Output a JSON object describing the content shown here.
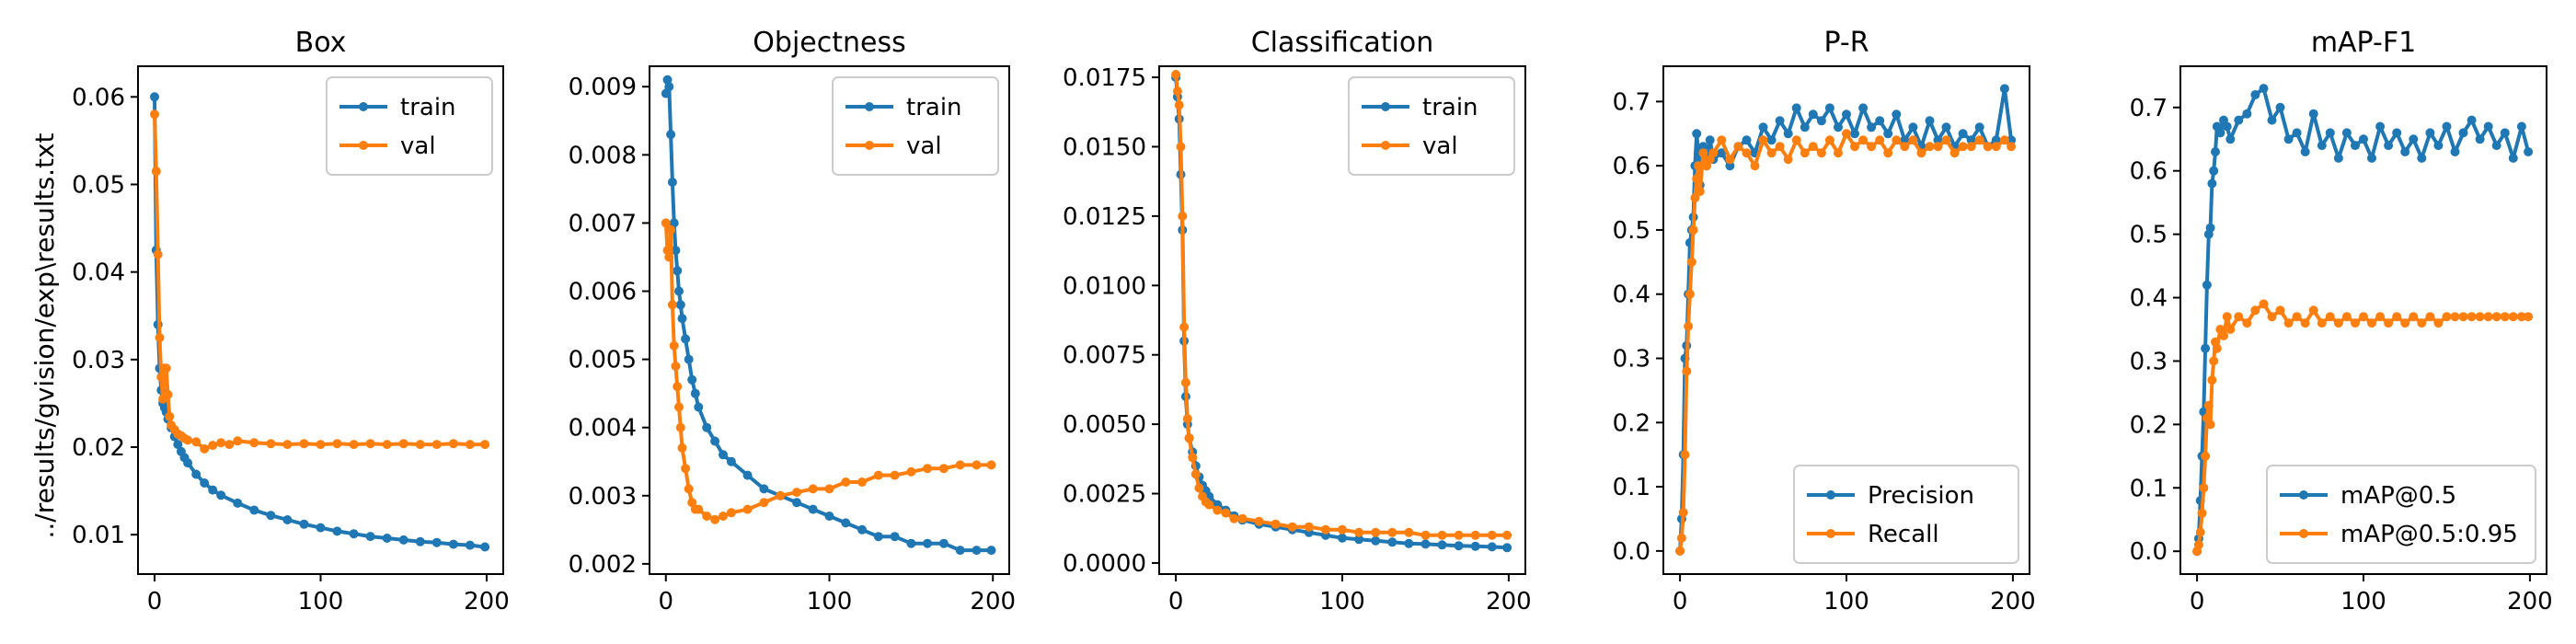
{
  "figure": {
    "ylabel": "../results/gvision/exp\\results.txt"
  },
  "colors": {
    "blue": "#1f77b4",
    "orange": "#ff7f0e"
  },
  "chart_data": [
    {
      "type": "line",
      "title": "Box",
      "xlim": [
        -10,
        210
      ],
      "ylim": [
        0.0055,
        0.0635
      ],
      "xticks": [
        0,
        100,
        200
      ],
      "yticks": [
        0.01,
        0.02,
        0.03,
        0.04,
        0.05,
        0.06
      ],
      "yticklabels": [
        "0.01",
        "0.02",
        "0.03",
        "0.04",
        "0.05",
        "0.06"
      ],
      "legend": "top-right",
      "series": [
        {
          "name": "train",
          "color": "blue",
          "x": [
            0,
            1,
            2,
            3,
            4,
            5,
            6,
            7,
            8,
            10,
            12,
            14,
            16,
            18,
            20,
            25,
            30,
            35,
            40,
            50,
            60,
            70,
            80,
            90,
            100,
            110,
            120,
            130,
            140,
            150,
            160,
            170,
            180,
            190,
            199
          ],
          "y": [
            0.06,
            0.0425,
            0.034,
            0.029,
            0.0265,
            0.025,
            0.0245,
            0.024,
            0.0232,
            0.0222,
            0.0212,
            0.0203,
            0.0195,
            0.0188,
            0.0182,
            0.0169,
            0.0159,
            0.0151,
            0.0145,
            0.0136,
            0.0128,
            0.0122,
            0.0117,
            0.0112,
            0.0108,
            0.0104,
            0.0101,
            0.0098,
            0.0096,
            0.0094,
            0.0092,
            0.0091,
            0.0089,
            0.0088,
            0.0086
          ]
        },
        {
          "name": "val",
          "color": "orange",
          "x": [
            0,
            1,
            2,
            3,
            4,
            5,
            6,
            7,
            8,
            9,
            10,
            12,
            14,
            16,
            18,
            20,
            25,
            30,
            35,
            40,
            45,
            50,
            60,
            70,
            80,
            90,
            100,
            110,
            120,
            130,
            140,
            150,
            160,
            170,
            180,
            190,
            199
          ],
          "y": [
            0.058,
            0.0515,
            0.042,
            0.0325,
            0.028,
            0.0255,
            0.029,
            0.029,
            0.026,
            0.0235,
            0.0225,
            0.022,
            0.0215,
            0.0213,
            0.021,
            0.0208,
            0.0206,
            0.0198,
            0.0202,
            0.0205,
            0.0203,
            0.0207,
            0.0205,
            0.0204,
            0.0203,
            0.0204,
            0.0203,
            0.0204,
            0.0203,
            0.0204,
            0.0203,
            0.0204,
            0.0203,
            0.0203,
            0.0204,
            0.0203,
            0.0203
          ]
        }
      ]
    },
    {
      "type": "line",
      "title": "Objectness",
      "xlim": [
        -10,
        210
      ],
      "ylim": [
        0.00185,
        0.0093
      ],
      "xticks": [
        0,
        100,
        200
      ],
      "yticks": [
        0.002,
        0.003,
        0.004,
        0.005,
        0.006,
        0.007,
        0.008,
        0.009
      ],
      "yticklabels": [
        "0.002",
        "0.003",
        "0.004",
        "0.005",
        "0.006",
        "0.007",
        "0.008",
        "0.009"
      ],
      "legend": "top-right",
      "series": [
        {
          "name": "train",
          "color": "blue",
          "x": [
            0,
            1,
            2,
            3,
            4,
            5,
            6,
            7,
            8,
            9,
            10,
            12,
            14,
            16,
            18,
            20,
            25,
            30,
            35,
            40,
            50,
            60,
            70,
            80,
            90,
            100,
            110,
            120,
            130,
            140,
            150,
            160,
            170,
            180,
            190,
            199
          ],
          "y": [
            0.0089,
            0.0091,
            0.009,
            0.0083,
            0.0076,
            0.007,
            0.0066,
            0.0063,
            0.006,
            0.0058,
            0.0056,
            0.0053,
            0.005,
            0.0047,
            0.0045,
            0.0043,
            0.004,
            0.0038,
            0.0036,
            0.0035,
            0.0033,
            0.0031,
            0.003,
            0.0029,
            0.0028,
            0.0027,
            0.0026,
            0.0025,
            0.0024,
            0.0024,
            0.0023,
            0.0023,
            0.0023,
            0.0022,
            0.0022,
            0.0022
          ]
        },
        {
          "name": "val",
          "color": "orange",
          "x": [
            0,
            1,
            2,
            3,
            4,
            5,
            6,
            7,
            8,
            9,
            10,
            12,
            14,
            16,
            18,
            20,
            25,
            30,
            35,
            40,
            50,
            60,
            70,
            80,
            90,
            100,
            110,
            120,
            130,
            140,
            150,
            160,
            170,
            180,
            190,
            199
          ],
          "y": [
            0.007,
            0.0066,
            0.0065,
            0.0069,
            0.0058,
            0.0052,
            0.0049,
            0.0046,
            0.0043,
            0.004,
            0.0037,
            0.0034,
            0.0031,
            0.0029,
            0.0028,
            0.0028,
            0.0027,
            0.00265,
            0.0027,
            0.00275,
            0.0028,
            0.0029,
            0.003,
            0.00305,
            0.0031,
            0.0031,
            0.0032,
            0.0032,
            0.0033,
            0.0033,
            0.00335,
            0.0034,
            0.0034,
            0.00345,
            0.00345,
            0.00345
          ]
        }
      ]
    },
    {
      "type": "line",
      "title": "Classification",
      "xlim": [
        -10,
        210
      ],
      "ylim": [
        -0.0004,
        0.0179
      ],
      "xticks": [
        0,
        100,
        200
      ],
      "yticks": [
        0,
        0.0025,
        0.005,
        0.0075,
        0.01,
        0.0125,
        0.015,
        0.0175
      ],
      "yticklabels": [
        "0.0000",
        "0.0025",
        "0.0050",
        "0.0075",
        "0.0100",
        "0.0125",
        "0.0150",
        "0.0175"
      ],
      "legend": "top-right",
      "series": [
        {
          "name": "train",
          "color": "blue",
          "x": [
            0,
            1,
            2,
            3,
            4,
            5,
            6,
            7,
            8,
            10,
            12,
            14,
            16,
            18,
            20,
            25,
            30,
            35,
            40,
            50,
            60,
            70,
            80,
            90,
            100,
            110,
            120,
            130,
            140,
            150,
            160,
            170,
            180,
            190,
            199
          ],
          "y": [
            0.0175,
            0.0168,
            0.016,
            0.014,
            0.012,
            0.008,
            0.006,
            0.005,
            0.0045,
            0.004,
            0.0035,
            0.0031,
            0.0028,
            0.0026,
            0.0024,
            0.0021,
            0.0019,
            0.0017,
            0.00155,
            0.0014,
            0.0013,
            0.0012,
            0.0011,
            0.001,
            0.0009,
            0.00085,
            0.0008,
            0.00075,
            0.0007,
            0.00068,
            0.00065,
            0.00062,
            0.0006,
            0.00058,
            0.00055
          ]
        },
        {
          "name": "val",
          "color": "orange",
          "x": [
            0,
            1,
            2,
            3,
            4,
            5,
            6,
            7,
            8,
            10,
            12,
            14,
            16,
            18,
            20,
            25,
            30,
            35,
            40,
            50,
            60,
            70,
            80,
            90,
            100,
            110,
            120,
            130,
            140,
            150,
            160,
            170,
            180,
            190,
            199
          ],
          "y": [
            0.0176,
            0.017,
            0.0165,
            0.015,
            0.0125,
            0.0085,
            0.0065,
            0.0052,
            0.0045,
            0.0038,
            0.0032,
            0.0027,
            0.0024,
            0.0022,
            0.0021,
            0.0019,
            0.0018,
            0.0016,
            0.0016,
            0.0015,
            0.0014,
            0.0013,
            0.0013,
            0.0012,
            0.0012,
            0.0011,
            0.0011,
            0.0011,
            0.0011,
            0.001,
            0.001,
            0.001,
            0.001,
            0.001,
            0.001
          ]
        }
      ]
    },
    {
      "type": "line",
      "title": "P-R",
      "xlim": [
        -10,
        210
      ],
      "ylim": [
        -0.036,
        0.755
      ],
      "xticks": [
        0,
        100,
        200
      ],
      "yticks": [
        0,
        0.1,
        0.2,
        0.3,
        0.4,
        0.5,
        0.6,
        0.7
      ],
      "yticklabels": [
        "0.0",
        "0.1",
        "0.2",
        "0.3",
        "0.4",
        "0.5",
        "0.6",
        "0.7"
      ],
      "legend": "bottom-right",
      "series": [
        {
          "name": "Precision",
          "color": "blue",
          "x": [
            0,
            1,
            2,
            3,
            4,
            5,
            6,
            7,
            8,
            9,
            10,
            11,
            12,
            14,
            16,
            18,
            20,
            25,
            30,
            35,
            40,
            45,
            50,
            55,
            60,
            65,
            70,
            75,
            80,
            85,
            90,
            95,
            100,
            105,
            110,
            115,
            120,
            125,
            130,
            135,
            140,
            145,
            150,
            155,
            160,
            165,
            170,
            175,
            180,
            185,
            190,
            195,
            199
          ],
          "y": [
            0.0,
            0.05,
            0.15,
            0.3,
            0.32,
            0.4,
            0.48,
            0.5,
            0.52,
            0.6,
            0.65,
            0.62,
            0.57,
            0.63,
            0.6,
            0.64,
            0.61,
            0.62,
            0.6,
            0.63,
            0.64,
            0.62,
            0.66,
            0.64,
            0.67,
            0.65,
            0.69,
            0.66,
            0.68,
            0.67,
            0.69,
            0.66,
            0.68,
            0.65,
            0.69,
            0.66,
            0.67,
            0.65,
            0.68,
            0.64,
            0.66,
            0.63,
            0.67,
            0.64,
            0.66,
            0.63,
            0.65,
            0.64,
            0.66,
            0.63,
            0.64,
            0.72,
            0.64
          ]
        },
        {
          "name": "Recall",
          "color": "orange",
          "x": [
            0,
            1,
            2,
            3,
            4,
            5,
            6,
            7,
            8,
            9,
            10,
            11,
            12,
            14,
            16,
            18,
            20,
            25,
            30,
            35,
            40,
            45,
            50,
            55,
            60,
            65,
            70,
            75,
            80,
            85,
            90,
            95,
            100,
            105,
            110,
            115,
            120,
            125,
            130,
            135,
            140,
            145,
            150,
            155,
            160,
            165,
            170,
            175,
            180,
            185,
            190,
            195,
            199
          ],
          "y": [
            0.0,
            0.02,
            0.06,
            0.15,
            0.28,
            0.35,
            0.4,
            0.45,
            0.5,
            0.55,
            0.58,
            0.6,
            0.56,
            0.62,
            0.6,
            0.61,
            0.62,
            0.64,
            0.61,
            0.63,
            0.62,
            0.6,
            0.64,
            0.62,
            0.63,
            0.61,
            0.64,
            0.62,
            0.63,
            0.62,
            0.64,
            0.62,
            0.65,
            0.63,
            0.64,
            0.63,
            0.64,
            0.62,
            0.64,
            0.63,
            0.64,
            0.62,
            0.63,
            0.63,
            0.64,
            0.62,
            0.63,
            0.63,
            0.64,
            0.63,
            0.63,
            0.64,
            0.63
          ]
        }
      ]
    },
    {
      "type": "line",
      "title": "mAP-F1",
      "xlim": [
        -10,
        210
      ],
      "ylim": [
        -0.036,
        0.765
      ],
      "xticks": [
        0,
        100,
        200
      ],
      "yticks": [
        0,
        0.1,
        0.2,
        0.3,
        0.4,
        0.5,
        0.6,
        0.7
      ],
      "yticklabels": [
        "0.0",
        "0.1",
        "0.2",
        "0.3",
        "0.4",
        "0.5",
        "0.6",
        "0.7"
      ],
      "legend": "bottom-right",
      "series": [
        {
          "name": "mAP@0.5",
          "color": "blue",
          "x": [
            0,
            1,
            2,
            3,
            4,
            5,
            6,
            7,
            8,
            9,
            10,
            11,
            12,
            14,
            16,
            18,
            20,
            25,
            30,
            35,
            40,
            45,
            50,
            55,
            60,
            65,
            70,
            75,
            80,
            85,
            90,
            95,
            100,
            105,
            110,
            115,
            120,
            125,
            130,
            135,
            140,
            145,
            150,
            155,
            160,
            165,
            170,
            175,
            180,
            185,
            190,
            195,
            199
          ],
          "y": [
            0.0,
            0.02,
            0.08,
            0.15,
            0.22,
            0.32,
            0.42,
            0.5,
            0.51,
            0.58,
            0.6,
            0.63,
            0.67,
            0.66,
            0.68,
            0.67,
            0.65,
            0.68,
            0.69,
            0.72,
            0.73,
            0.68,
            0.7,
            0.65,
            0.66,
            0.63,
            0.69,
            0.64,
            0.66,
            0.62,
            0.66,
            0.64,
            0.65,
            0.62,
            0.67,
            0.64,
            0.66,
            0.63,
            0.65,
            0.62,
            0.66,
            0.64,
            0.67,
            0.63,
            0.66,
            0.68,
            0.65,
            0.67,
            0.64,
            0.66,
            0.62,
            0.67,
            0.63
          ]
        },
        {
          "name": "mAP@0.5:0.95",
          "color": "orange",
          "x": [
            0,
            1,
            2,
            3,
            4,
            5,
            6,
            7,
            8,
            9,
            10,
            11,
            12,
            14,
            16,
            18,
            20,
            25,
            30,
            35,
            40,
            45,
            50,
            55,
            60,
            65,
            70,
            75,
            80,
            85,
            90,
            95,
            100,
            105,
            110,
            115,
            120,
            125,
            130,
            135,
            140,
            145,
            150,
            155,
            160,
            165,
            170,
            175,
            180,
            185,
            190,
            195,
            199
          ],
          "y": [
            0.0,
            0.01,
            0.03,
            0.06,
            0.1,
            0.15,
            0.21,
            0.23,
            0.2,
            0.27,
            0.3,
            0.33,
            0.32,
            0.35,
            0.34,
            0.37,
            0.35,
            0.37,
            0.36,
            0.38,
            0.39,
            0.37,
            0.38,
            0.36,
            0.37,
            0.36,
            0.38,
            0.36,
            0.37,
            0.36,
            0.37,
            0.36,
            0.37,
            0.36,
            0.37,
            0.36,
            0.37,
            0.36,
            0.37,
            0.36,
            0.37,
            0.36,
            0.37,
            0.37,
            0.37,
            0.37,
            0.37,
            0.37,
            0.37,
            0.37,
            0.37,
            0.37,
            0.37
          ]
        }
      ]
    }
  ]
}
